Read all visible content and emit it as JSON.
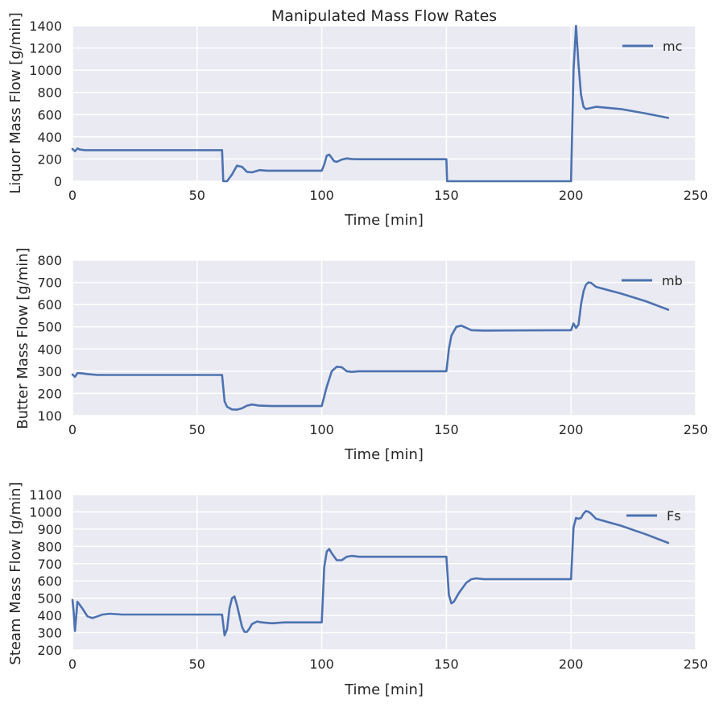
{
  "colors": {
    "background": "#EAEAF2",
    "grid": "#FFFFFF",
    "series": "#4C72B0",
    "text": "#262626"
  },
  "chart_data": [
    {
      "type": "line",
      "title": "Manipulated Mass Flow Rates",
      "xlabel": "Time [min]",
      "ylabel": "Liquor Mass Flow [g/min]",
      "xlim": [
        0,
        250
      ],
      "ylim": [
        0,
        1400
      ],
      "xticks": [
        0,
        50,
        100,
        150,
        200,
        250
      ],
      "yticks": [
        0,
        200,
        400,
        600,
        800,
        1000,
        1200,
        1400
      ],
      "grid": true,
      "legend_position": "top-right",
      "series": [
        {
          "name": "mc",
          "x": [
            0,
            1,
            2,
            3,
            5,
            10,
            20,
            40,
            60,
            60.5,
            62,
            64,
            66,
            68,
            70,
            72,
            75,
            78,
            80,
            90,
            100,
            101,
            102,
            103,
            104,
            105,
            106,
            108,
            110,
            112,
            115,
            120,
            150,
            150.3,
            160,
            200,
            200.3,
            201,
            202,
            203,
            204,
            205,
            206,
            208,
            210,
            220,
            230,
            239
          ],
          "y": [
            290,
            270,
            295,
            285,
            280,
            280,
            280,
            280,
            280,
            0,
            0,
            60,
            140,
            130,
            85,
            80,
            100,
            95,
            95,
            95,
            95,
            150,
            230,
            240,
            210,
            180,
            175,
            195,
            205,
            200,
            198,
            198,
            198,
            0,
            0,
            0,
            300,
            1000,
            1400,
            1050,
            780,
            670,
            650,
            660,
            670,
            650,
            610,
            570
          ]
        }
      ]
    },
    {
      "type": "line",
      "xlabel": "Time [min]",
      "ylabel": "Butter Mass Flow [g/min]",
      "xlim": [
        0,
        250
      ],
      "ylim": [
        100,
        800
      ],
      "xticks": [
        0,
        50,
        100,
        150,
        200,
        250
      ],
      "yticks": [
        100,
        200,
        300,
        400,
        500,
        600,
        700,
        800
      ],
      "grid": true,
      "legend_position": "top-right",
      "series": [
        {
          "name": "mb",
          "x": [
            0,
            1,
            2,
            4,
            6,
            10,
            20,
            40,
            60,
            61,
            62,
            64,
            66,
            68,
            70,
            72,
            75,
            80,
            90,
            100,
            102,
            104,
            106,
            108,
            110,
            112,
            115,
            120,
            150,
            151,
            152,
            154,
            156,
            158,
            160,
            165,
            200,
            201,
            202,
            203,
            204,
            205,
            206,
            207,
            208,
            210,
            220,
            230,
            239
          ],
          "y": [
            285,
            275,
            292,
            290,
            287,
            283,
            283,
            283,
            283,
            165,
            140,
            128,
            127,
            133,
            145,
            150,
            145,
            143,
            143,
            143,
            230,
            300,
            320,
            318,
            300,
            297,
            300,
            300,
            300,
            400,
            460,
            500,
            505,
            495,
            485,
            483,
            485,
            515,
            495,
            510,
            600,
            660,
            690,
            700,
            698,
            680,
            650,
            615,
            577
          ]
        }
      ]
    },
    {
      "type": "line",
      "xlabel": "Time [min]",
      "ylabel": "Steam Mass Flow [g/min]",
      "xlim": [
        0,
        250
      ],
      "ylim": [
        200,
        1100
      ],
      "xticks": [
        0,
        50,
        100,
        150,
        200,
        250
      ],
      "yticks": [
        200,
        300,
        400,
        500,
        600,
        700,
        800,
        900,
        1000,
        1100
      ],
      "grid": true,
      "legend_position": "top-right",
      "series": [
        {
          "name": "Fs",
          "x": [
            0,
            0.5,
            1,
            2,
            4,
            6,
            8,
            10,
            12,
            15,
            20,
            30,
            40,
            50,
            60,
            61,
            62,
            63,
            64,
            65,
            66,
            68,
            69,
            70,
            71,
            72,
            74,
            76,
            80,
            85,
            90,
            100,
            101,
            102,
            103,
            104,
            106,
            108,
            110,
            112,
            115,
            120,
            130,
            150,
            151,
            152,
            153,
            155,
            158,
            160,
            162,
            165,
            170,
            200,
            201,
            202,
            203,
            204,
            205,
            206,
            207,
            208,
            210,
            220,
            230,
            239
          ],
          "y": [
            490,
            420,
            310,
            480,
            440,
            395,
            385,
            395,
            405,
            410,
            405,
            405,
            405,
            405,
            405,
            285,
            320,
            440,
            500,
            510,
            460,
            335,
            305,
            305,
            325,
            350,
            365,
            360,
            355,
            360,
            360,
            360,
            680,
            770,
            785,
            760,
            720,
            720,
            740,
            745,
            740,
            740,
            740,
            740,
            520,
            470,
            480,
            530,
            590,
            610,
            615,
            610,
            610,
            610,
            910,
            965,
            960,
            965,
            990,
            1005,
            1000,
            990,
            960,
            920,
            870,
            820
          ]
        }
      ]
    }
  ]
}
